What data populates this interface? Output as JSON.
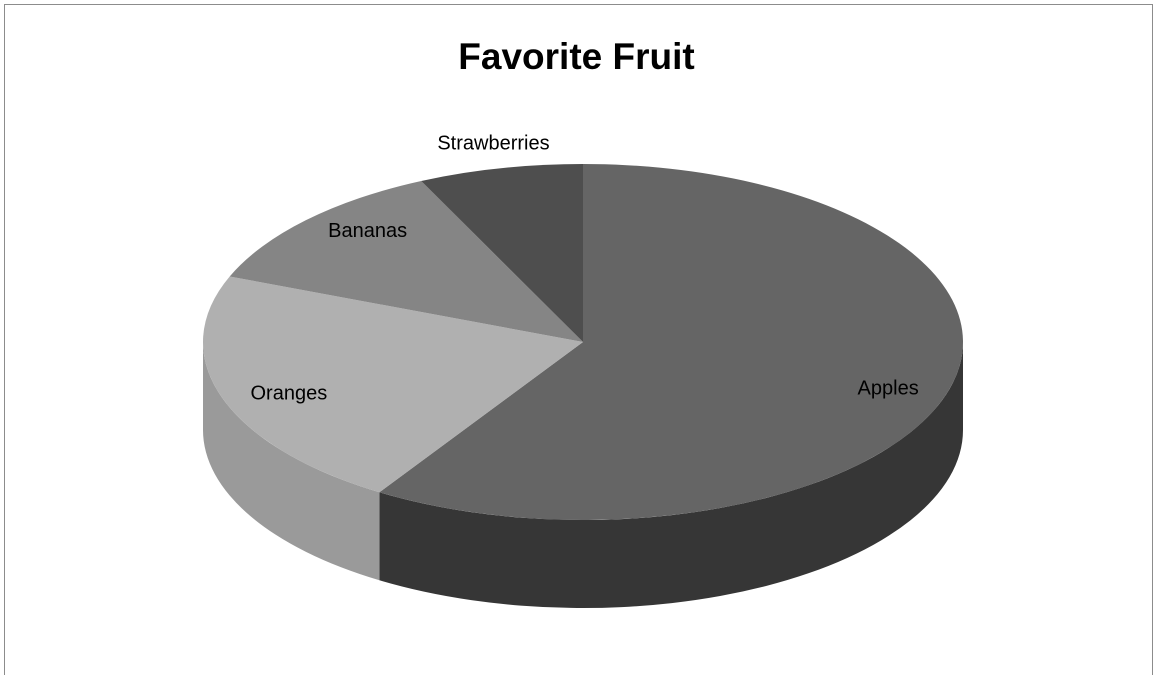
{
  "chart_data": {
    "type": "pie",
    "title": "Favorite Fruit",
    "categories": [
      "Apples",
      "Oranges",
      "Bananas",
      "Strawberries"
    ],
    "values": [
      59,
      22,
      12,
      7
    ],
    "style": "3d",
    "legend": "none",
    "colors": {
      "Apples": "#656565",
      "Oranges": "#b0b0b0",
      "Bananas": "#858585",
      "Strawberries": "#4e4e4e"
    },
    "side_colors": {
      "Apples": "#363636",
      "Oranges": "#9a9a9a",
      "Bananas": "#6a6a6a",
      "Strawberries": "#2e2e2e"
    }
  }
}
